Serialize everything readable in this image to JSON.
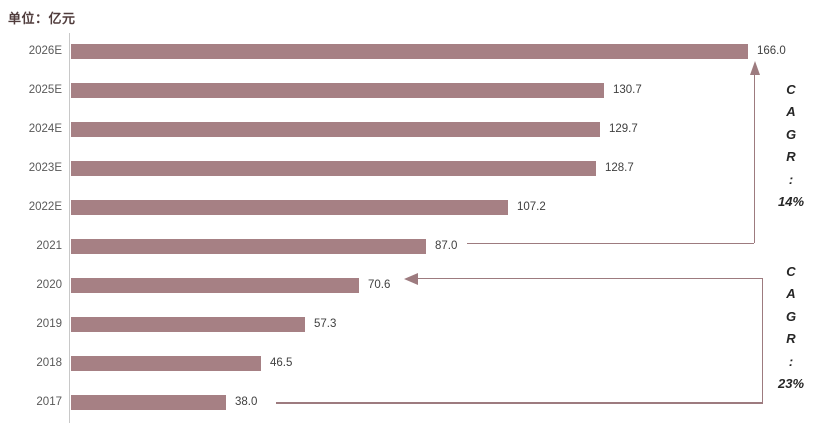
{
  "unit_label": "单位：亿元",
  "chart_data": {
    "type": "bar",
    "orientation": "horizontal",
    "title": "",
    "unit": "单位：亿元",
    "categories": [
      "2026E",
      "2025E",
      "2024E",
      "2023E",
      "2022E",
      "2021",
      "2020",
      "2019",
      "2018",
      "2017"
    ],
    "values": [
      166.0,
      130.7,
      129.7,
      128.7,
      107.2,
      87.0,
      70.6,
      57.3,
      46.5,
      38.0
    ],
    "value_labels": [
      "166.0",
      "130.7",
      "129.7",
      "128.7",
      "107.2",
      "87.0",
      "70.6",
      "57.3",
      "46.5",
      "38.0"
    ],
    "xlim": [
      0,
      166
    ],
    "grid": false,
    "legend": "none",
    "annotations": [
      {
        "id": "cagr-2021-to-2026",
        "text": "CAGR：14%",
        "letters": [
          "C",
          "A",
          "G",
          "R",
          ":",
          "14%"
        ],
        "from_category": "2021",
        "to_category": "2026E",
        "value": "14%"
      },
      {
        "id": "cagr-2017-to-2020",
        "text": "CAGR：23%",
        "letters": [
          "C",
          "A",
          "G",
          "R",
          ":",
          "23%"
        ],
        "from_category": "2017",
        "to_category": "2020",
        "value": "23%"
      }
    ]
  },
  "colors": {
    "bar": "#A68084",
    "connector": "#9D7B7F",
    "axis": "#C8C8C8",
    "category_label": "#595959",
    "value_label": "#404040",
    "unit_label": "#503C3C",
    "cagr_text": "#262626",
    "background": "#FFFFFF"
  }
}
